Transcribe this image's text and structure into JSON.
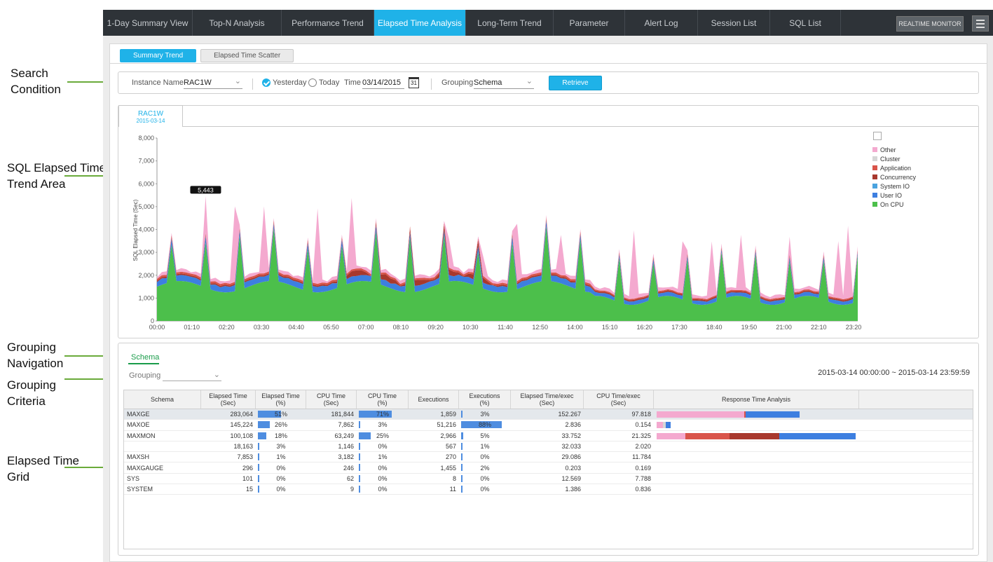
{
  "annotations": [
    {
      "text": "Search\nCondition"
    },
    {
      "text": "SQL Elapsed Time\nTrend Area"
    },
    {
      "text": "Grouping\nNavigation"
    },
    {
      "text": "Grouping\nCriteria"
    },
    {
      "text": "Elapsed Time\nGrid"
    }
  ],
  "nav": {
    "tabs": [
      "1-Day Summary View",
      "Top-N Analysis",
      "Performance Trend",
      "Elapsed Time Analysis",
      "Long-Term Trend",
      "Parameter",
      "Alert Log",
      "Session List",
      "SQL List"
    ],
    "active": "Elapsed Time Analysis",
    "realtime_label": "REALTIME MONITOR"
  },
  "subtabs": [
    "Summary Trend",
    "Elapsed Time Scatter"
  ],
  "search": {
    "instance_label": "Instance Name",
    "instance_value": "RAC1W",
    "yesterday": "Yesterday",
    "today": "Today",
    "time_label": "Time",
    "time_value": "03/14/2015",
    "calendar_day": "31",
    "grouping_label": "Grouping",
    "grouping_value": "Schema",
    "retrieve": "Retrieve"
  },
  "instance_tab": {
    "name": "RAC1W",
    "date": "2015-03-14"
  },
  "chart_data": {
    "type": "area",
    "ylabel": "SQL Elapsed Time (Sec)",
    "ylim": [
      0,
      8000
    ],
    "yticks": [
      "8,000",
      "7,000",
      "6,000",
      "5,000",
      "4,000",
      "3,000",
      "2,000",
      "1,000",
      "0"
    ],
    "xticks": [
      "00:00",
      "01:10",
      "02:20",
      "03:30",
      "04:40",
      "05:50",
      "07:00",
      "08:10",
      "09:20",
      "10:30",
      "11:40",
      "12:50",
      "14:00",
      "15:10",
      "16:20",
      "17:30",
      "18:40",
      "19:50",
      "21:00",
      "22:10",
      "23:20"
    ],
    "peak_label": "5,443",
    "legend": [
      {
        "name": "Other",
        "color": "#f4a9cf"
      },
      {
        "name": "Cluster",
        "color": "#d6d6d6"
      },
      {
        "name": "Application",
        "color": "#d9544a"
      },
      {
        "name": "Concurrency",
        "color": "#a8382d"
      },
      {
        "name": "System IO",
        "color": "#4aa3df"
      },
      {
        "name": "User IO",
        "color": "#3d7fe0"
      },
      {
        "name": "On CPU",
        "color": "#4cbf4b"
      }
    ],
    "series_points": 145
  },
  "grid": {
    "nav_tab": "Schema",
    "grouping_label": "Grouping",
    "range": "2015-03-14 00:00:00 ~ 2015-03-14 23:59:59",
    "columns": [
      "Schema",
      "Elapsed Time\n(Sec)",
      "Elapsed Time\n(%)",
      "CPU Time\n(Sec)",
      "CPU Time\n(%)",
      "Executions",
      "Executions\n(%)",
      "Elapsed Time/exec\n(Sec)",
      "CPU Time/exec\n(Sec)",
      "Response Time Analysis"
    ],
    "rows": [
      {
        "schema": "MAXGE",
        "elapsed": "283,064",
        "elapsed_pct": "51%",
        "ep": 51,
        "cpu": "181,844",
        "cpu_pct": "71%",
        "cp": 71,
        "exec": "1,859",
        "exec_pct": "3%",
        "xp": 3,
        "el_exec": "152.267",
        "cpu_exec": "97.818",
        "rta": [
          [
            "#f4a9cf",
            0,
            125
          ],
          [
            "#d9544a",
            125,
            2
          ],
          [
            "#3d7fe0",
            127,
            77
          ]
        ]
      },
      {
        "schema": "MAXOE",
        "elapsed": "145,224",
        "elapsed_pct": "26%",
        "ep": 26,
        "cpu": "7,862",
        "cpu_pct": "3%",
        "cp": 3,
        "exec": "51,216",
        "exec_pct": "88%",
        "xp": 88,
        "el_exec": "2.836",
        "cpu_exec": "0.154",
        "rta": [
          [
            "#f4a9cf",
            0,
            9
          ],
          [
            "#d6d6d6",
            9,
            4
          ],
          [
            "#3d7fe0",
            13,
            7
          ]
        ]
      },
      {
        "schema": "MAXMON",
        "elapsed": "100,108",
        "elapsed_pct": "18%",
        "ep": 18,
        "cpu": "63,249",
        "cpu_pct": "25%",
        "cp": 25,
        "exec": "2,966",
        "exec_pct": "5%",
        "xp": 5,
        "el_exec": "33.752",
        "cpu_exec": "21.325",
        "rta": [
          [
            "#f4a9cf",
            0,
            41
          ],
          [
            "#d9544a",
            41,
            63
          ],
          [
            "#a8382d",
            104,
            71
          ],
          [
            "#3d7fe0",
            175,
            109
          ]
        ]
      },
      {
        "schema": "",
        "elapsed": "18,163",
        "elapsed_pct": "3%",
        "ep": 3,
        "cpu": "1,146",
        "cpu_pct": "0%",
        "cp": 0,
        "exec": "567",
        "exec_pct": "1%",
        "xp": 1,
        "el_exec": "32.033",
        "cpu_exec": "2.020",
        "rta": []
      },
      {
        "schema": "MAXSH",
        "elapsed": "7,853",
        "elapsed_pct": "1%",
        "ep": 1,
        "cpu": "3,182",
        "cpu_pct": "1%",
        "cp": 1,
        "exec": "270",
        "exec_pct": "0%",
        "xp": 0,
        "el_exec": "29.086",
        "cpu_exec": "11.784",
        "rta": []
      },
      {
        "schema": "MAXGAUGE",
        "elapsed": "296",
        "elapsed_pct": "0%",
        "ep": 0,
        "cpu": "246",
        "cpu_pct": "0%",
        "cp": 0,
        "exec": "1,455",
        "exec_pct": "2%",
        "xp": 2,
        "el_exec": "0.203",
        "cpu_exec": "0.169",
        "rta": []
      },
      {
        "schema": "SYS",
        "elapsed": "101",
        "elapsed_pct": "0%",
        "ep": 0,
        "cpu": "62",
        "cpu_pct": "0%",
        "cp": 0,
        "exec": "8",
        "exec_pct": "0%",
        "xp": 0,
        "el_exec": "12.569",
        "cpu_exec": "7.788",
        "rta": []
      },
      {
        "schema": "SYSTEM",
        "elapsed": "15",
        "elapsed_pct": "0%",
        "ep": 0,
        "cpu": "9",
        "cpu_pct": "0%",
        "cp": 0,
        "exec": "11",
        "exec_pct": "0%",
        "xp": 0,
        "el_exec": "1.386",
        "cpu_exec": "0.836",
        "rta": []
      }
    ]
  }
}
